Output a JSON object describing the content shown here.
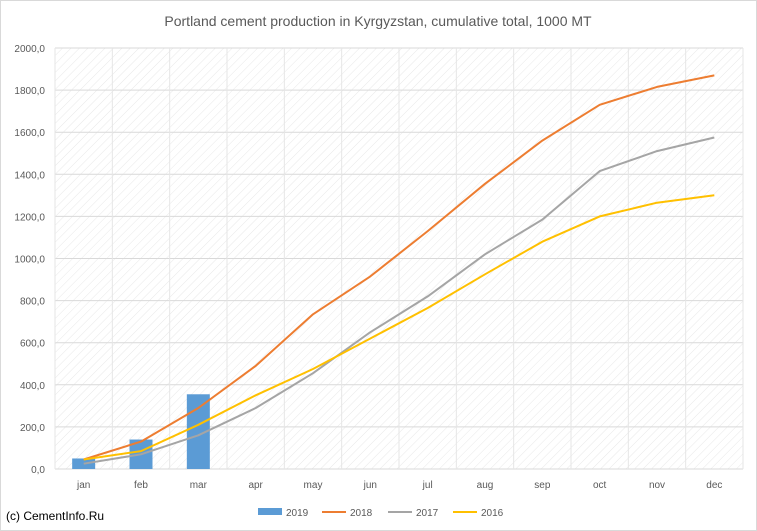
{
  "chart_data": {
    "type": "bar+line",
    "title": "Portland cement production in Kyrgyzstan, cumulative total, 1000 MT",
    "categories": [
      "jan",
      "feb",
      "mar",
      "apr",
      "may",
      "jun",
      "jul",
      "aug",
      "sep",
      "oct",
      "nov",
      "dec"
    ],
    "ylim": [
      0,
      2000
    ],
    "yticks": [
      "0,0",
      "200,0",
      "400,0",
      "600,0",
      "800,0",
      "1000,0",
      "1200,0",
      "1400,0",
      "1600,0",
      "1800,0",
      "2000,0"
    ],
    "grid": "horizontal",
    "legend_position": "bottom",
    "bar_series": {
      "name": "2019",
      "color": "#5b9bd5",
      "values": [
        50,
        140,
        355
      ]
    },
    "line_series": [
      {
        "name": "2018",
        "color": "#ed7d31",
        "values": [
          45,
          130,
          290,
          490,
          735,
          915,
          1130,
          1355,
          1560,
          1730,
          1815,
          1870
        ]
      },
      {
        "name": "2017",
        "color": "#a5a5a5",
        "values": [
          25,
          70,
          160,
          290,
          455,
          650,
          820,
          1020,
          1185,
          1415,
          1510,
          1575
        ]
      },
      {
        "name": "2016",
        "color": "#ffc000",
        "values": [
          45,
          85,
          210,
          350,
          475,
          620,
          765,
          925,
          1080,
          1200,
          1265,
          1300
        ]
      }
    ]
  },
  "footer": {
    "credit": "(c) CementInfo.Ru"
  }
}
